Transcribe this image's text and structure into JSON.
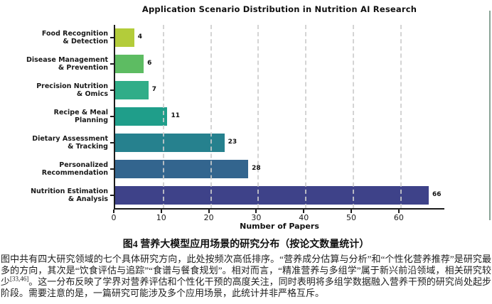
{
  "chart_data": {
    "type": "bar",
    "orientation": "horizontal",
    "title": "Application Scenario Distribution in Nutrition AI Research",
    "xlabel": "Number of Papers",
    "categories": [
      "Food Recognition\n& Detection",
      "Disease Management\n& Prevention",
      "Precision Nutrition\n& Omics",
      "Recipe & Meal\nPlanning",
      "Dietary Assessment\n& Tracking",
      "Personalized\nRecommendation",
      "Nutrition Estimation\n& Analysis"
    ],
    "values": [
      4,
      6,
      7,
      11,
      23,
      28,
      66
    ],
    "bar_colors": [
      "#b3cc3a",
      "#5dbc62",
      "#30ad88",
      "#1f9e8a",
      "#26818e",
      "#33658e",
      "#3e4289"
    ],
    "xlim": [
      0,
      69.3
    ],
    "xticks": [
      0,
      10,
      20,
      30,
      40,
      50,
      60
    ],
    "grid": "vertical-dashed",
    "legend": "none"
  },
  "caption": {
    "text": "图4 营养大模型应用场景的研究分布（按论文数量统计）"
  },
  "body": {
    "part1": "图中共有四大研究领域的七个具体研究方向，此处按频次高低排序。“营养成分估算与分析”和“个性化营养推荐”是研究最多的方向，其次是“饮食评估与追踪”“食谱与餐食规划”。相对而言，“精准营养与多组学”属于新兴前沿领域，相关研究较少",
    "citation": "[33,46]",
    "part2": "。这一分布反映了学界对营养评估和个性化干预的高度关注，同时表明将多组学数据融入营养干预的研究尚处起步阶段。需要注意的是，一篇研究可能涉及多个应用场景，此统计并非严格互斥。"
  }
}
